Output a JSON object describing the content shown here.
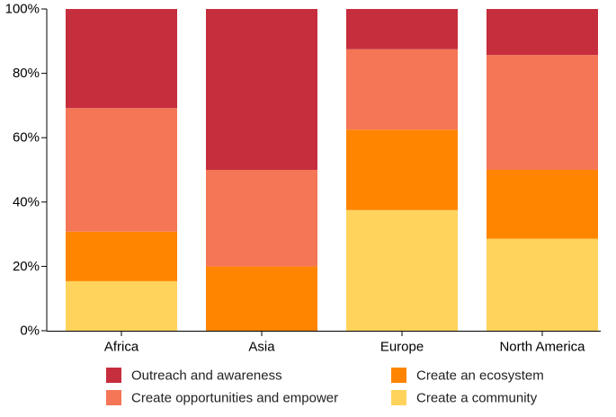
{
  "chart_data": {
    "type": "bar",
    "stacked": true,
    "normalized": true,
    "title": "",
    "xlabel": "",
    "ylabel": "",
    "ylim": [
      0,
      100
    ],
    "y_ticks": [
      0,
      20,
      40,
      60,
      80,
      100
    ],
    "y_tick_suffix": "%",
    "grid": false,
    "legend_position": "bottom",
    "categories": [
      "Africa",
      "Asia",
      "Europe",
      "North America"
    ],
    "series": [
      {
        "name": "Create a community",
        "color": "#FFD35C",
        "values": [
          15.4,
          0,
          37.5,
          28.6
        ]
      },
      {
        "name": "Create an ecosystem",
        "color": "#FF8500",
        "values": [
          15.4,
          20,
          25,
          21.4
        ]
      },
      {
        "name": "Create opportunities and empower",
        "color": "#F47656",
        "values": [
          38.4,
          30,
          25,
          35.7
        ]
      },
      {
        "name": "Outreach and awareness",
        "color": "#C62D3D",
        "values": [
          30.8,
          50,
          12.5,
          14.3
        ]
      }
    ],
    "legend_order": [
      "Outreach and awareness",
      "Create an ecosystem",
      "Create opportunities and empower",
      "Create a community"
    ]
  }
}
